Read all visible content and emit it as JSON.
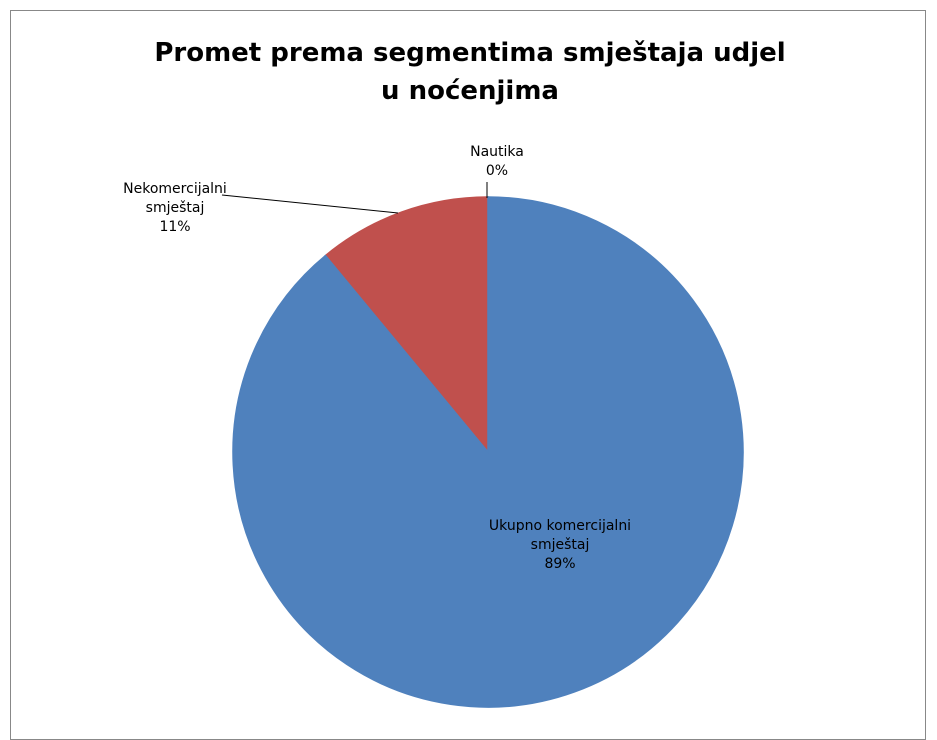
{
  "chart_data": {
    "type": "pie",
    "title": "Promet prema segmentima smještaja udjel u noćenjima",
    "categories": [
      "Ukupno komercijalni smještaj",
      "Nekomercijalni smještaj",
      "Nautika"
    ],
    "values": [
      89,
      11,
      0
    ],
    "value_labels": [
      "89%",
      "11%",
      "0%"
    ],
    "colors": [
      "#4f81bd",
      "#c0504d",
      "#9bbb59"
    ]
  }
}
